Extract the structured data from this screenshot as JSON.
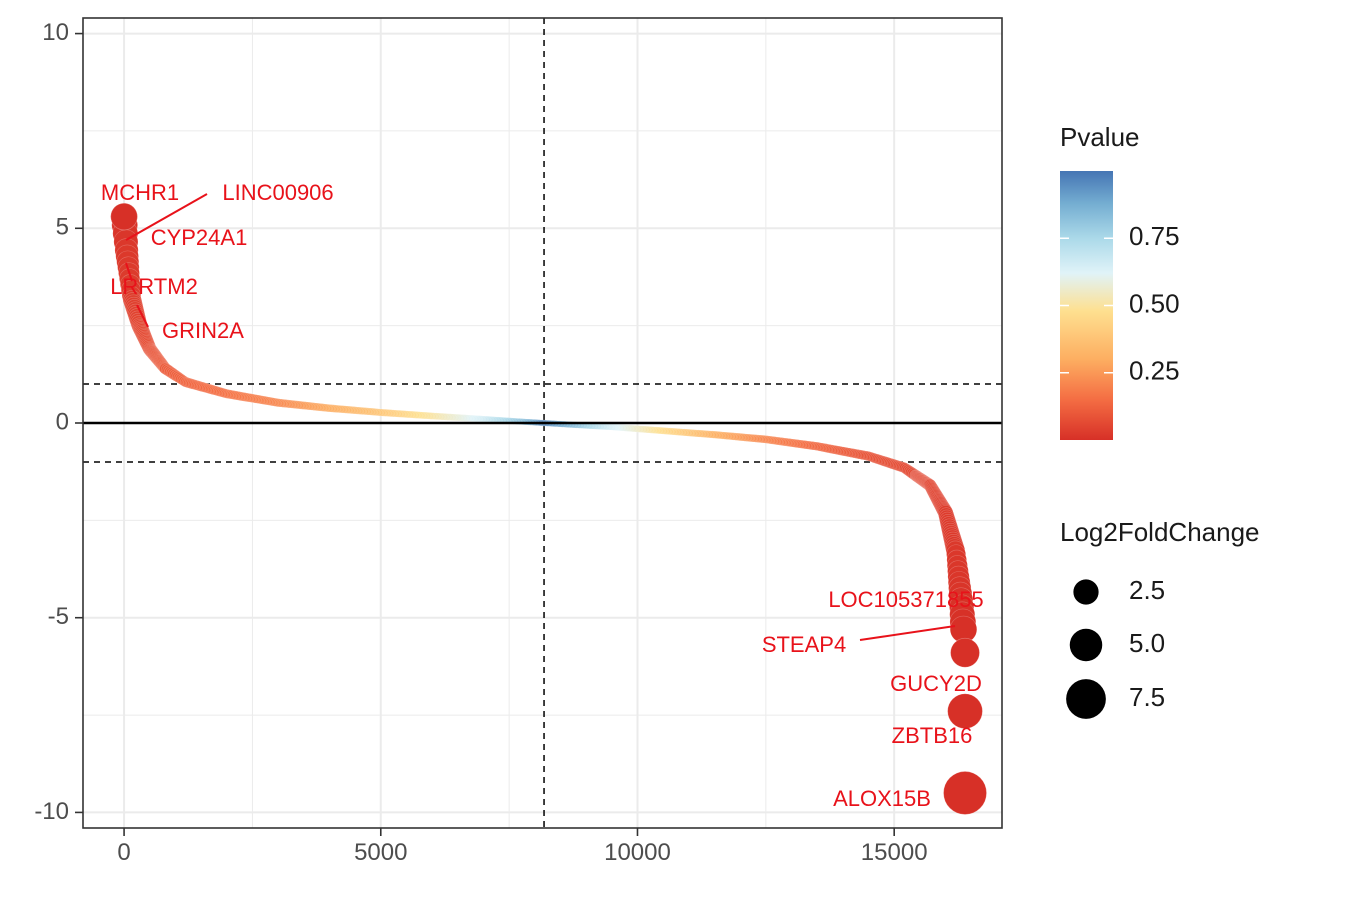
{
  "chart_data": {
    "type": "scatter",
    "title": "",
    "xlabel": "",
    "ylabel": "",
    "xlim": [
      -800,
      17100
    ],
    "ylim": [
      -10.4,
      10.4
    ],
    "x_ticks": [
      0,
      5000,
      10000,
      15000
    ],
    "y_ticks": [
      10,
      5,
      0,
      -5,
      -10
    ],
    "x_tick_labels": [
      "0",
      "5000",
      "10000",
      "15000"
    ],
    "y_tick_labels": [
      "10",
      "5",
      "0",
      "-5",
      "-10"
    ],
    "grid": true,
    "reference_lines": {
      "h_solid": 0,
      "h_dashed": [
        1,
        -1
      ],
      "v_dashed": 8180
    },
    "n_points": 16400,
    "series": [
      {
        "curve_samples": [
          {
            "x": 0,
            "y": 5.3,
            "p": 0.0
          },
          {
            "x": 50,
            "y": 4.4,
            "p": 0.02
          },
          {
            "x": 150,
            "y": 3.2,
            "p": 0.03
          },
          {
            "x": 300,
            "y": 2.5,
            "p": 0.05
          },
          {
            "x": 500,
            "y": 1.9,
            "p": 0.07
          },
          {
            "x": 800,
            "y": 1.4,
            "p": 0.1
          },
          {
            "x": 1200,
            "y": 1.05,
            "p": 0.12
          },
          {
            "x": 2000,
            "y": 0.75,
            "p": 0.15
          },
          {
            "x": 3000,
            "y": 0.52,
            "p": 0.2
          },
          {
            "x": 4000,
            "y": 0.38,
            "p": 0.28
          },
          {
            "x": 5000,
            "y": 0.27,
            "p": 0.35
          },
          {
            "x": 6000,
            "y": 0.18,
            "p": 0.45
          },
          {
            "x": 7000,
            "y": 0.1,
            "p": 0.6
          },
          {
            "x": 7800,
            "y": 0.03,
            "p": 0.8
          },
          {
            "x": 8180,
            "y": 0.0,
            "p": 0.95
          },
          {
            "x": 8800,
            "y": -0.05,
            "p": 0.8
          },
          {
            "x": 9500,
            "y": -0.1,
            "p": 0.6
          },
          {
            "x": 10500,
            "y": -0.2,
            "p": 0.42
          },
          {
            "x": 11500,
            "y": -0.3,
            "p": 0.3
          },
          {
            "x": 12500,
            "y": -0.42,
            "p": 0.2
          },
          {
            "x": 13500,
            "y": -0.6,
            "p": 0.13
          },
          {
            "x": 14500,
            "y": -0.85,
            "p": 0.08
          },
          {
            "x": 15200,
            "y": -1.15,
            "p": 0.06
          },
          {
            "x": 15700,
            "y": -1.6,
            "p": 0.05
          },
          {
            "x": 16000,
            "y": -2.3,
            "p": 0.03
          },
          {
            "x": 16200,
            "y": -3.3,
            "p": 0.02
          },
          {
            "x": 16300,
            "y": -4.5,
            "p": 0.01
          },
          {
            "x": 16350,
            "y": -5.3,
            "p": 0.0
          }
        ],
        "highlighted_points": [
          {
            "x": 0,
            "y": 5.3,
            "size": 5.3
          },
          {
            "x": 16380,
            "y": -5.9,
            "size": 5.9
          },
          {
            "x": 16380,
            "y": -7.4,
            "size": 7.4
          },
          {
            "x": 16380,
            "y": -9.5,
            "size": 9.5
          }
        ]
      }
    ],
    "annotations": [
      {
        "text": "MCHR1",
        "x": 0,
        "y": 5.3
      },
      {
        "text": "LINC00906",
        "x": 20,
        "y": 5.1
      },
      {
        "text": "CYP24A1",
        "x": 40,
        "y": 4.7
      },
      {
        "text": "LRRTM2",
        "x": 60,
        "y": 4.1
      },
      {
        "text": "GRIN2A",
        "x": 80,
        "y": 3.5
      },
      {
        "text": "LOC105371855",
        "x": 16350,
        "y": -5.3
      },
      {
        "text": "STEAP4",
        "x": 16350,
        "y": -5.2
      },
      {
        "text": "GUCY2D",
        "x": 16380,
        "y": -5.9
      },
      {
        "text": "ZBTB16",
        "x": 16380,
        "y": -7.4
      },
      {
        "text": "ALOX15B",
        "x": 16380,
        "y": -9.5
      }
    ],
    "legend": {
      "position": "right",
      "color": {
        "title": "Pvalue",
        "ticks": [
          0.75,
          0.5,
          0.25
        ],
        "tick_labels": [
          "0.75",
          "0.50",
          "0.25"
        ],
        "range": [
          0,
          1
        ],
        "gradient": [
          "#d73027",
          "#f46d43",
          "#fdae61",
          "#fee090",
          "#e0f3f8",
          "#abd9e9",
          "#74add1",
          "#4575b4"
        ]
      },
      "size": {
        "title": "Log2FoldChange",
        "values": [
          2.5,
          5.0,
          7.5
        ],
        "labels": [
          "2.5",
          "5.0",
          "7.5"
        ]
      }
    },
    "colors": {
      "label": "#e8121a",
      "point_high": "#d73027"
    }
  }
}
